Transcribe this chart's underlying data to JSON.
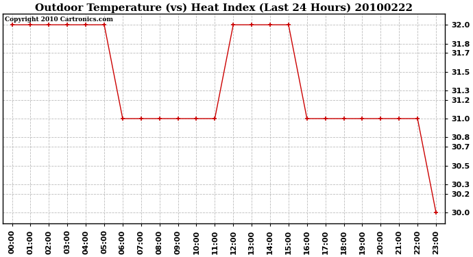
{
  "title": "Outdoor Temperature (vs) Heat Index (Last 24 Hours) 20100222",
  "copyright": "Copyright 2010 Cartronics.com",
  "x_labels": [
    "00:00",
    "01:00",
    "02:00",
    "03:00",
    "04:00",
    "05:00",
    "06:00",
    "07:00",
    "08:00",
    "09:00",
    "10:00",
    "11:00",
    "12:00",
    "13:00",
    "14:00",
    "15:00",
    "16:00",
    "17:00",
    "18:00",
    "19:00",
    "20:00",
    "21:00",
    "22:00",
    "23:00"
  ],
  "y_values": [
    32.0,
    32.0,
    32.0,
    32.0,
    32.0,
    32.0,
    31.0,
    31.0,
    31.0,
    31.0,
    31.0,
    31.0,
    32.0,
    32.0,
    32.0,
    32.0,
    31.0,
    31.0,
    31.0,
    31.0,
    31.0,
    31.0,
    31.0,
    30.0
  ],
  "y_ticks": [
    30.0,
    30.2,
    30.3,
    30.5,
    30.7,
    30.8,
    31.0,
    31.2,
    31.3,
    31.5,
    31.7,
    31.8,
    32.0
  ],
  "y_min": 29.88,
  "y_max": 32.12,
  "line_color": "#cc0000",
  "marker": "+",
  "marker_size": 4,
  "background_color": "#ffffff",
  "grid_color": "#bbbbbb",
  "title_fontsize": 11,
  "tick_fontsize": 8,
  "copyright_fontsize": 6.5
}
